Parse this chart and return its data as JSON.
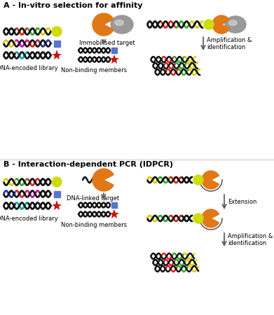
{
  "title_A": "A - In-vitro selection for affinity",
  "title_B": "B - Interaction-dependent PCR (IDPCR)",
  "label_dna_library": "DNA-encoded library",
  "label_immobilised": "Immobilised target",
  "label_nonbinding": "Non-binding members",
  "label_dna_linked": "DNA-linked target",
  "label_amplification": "Amplification &\nidentification",
  "label_extension": "Extension",
  "bg_color": "#ffffff",
  "text_color": "#000000",
  "orange_color": "#e07818",
  "yellow_color": "#ccdd00",
  "blue_square_color": "#5577cc",
  "red_star_color": "#cc1111",
  "gray_bead_color": "#999999",
  "arrow_color": "#555555",
  "dna_black": "#111111",
  "dna_red": "#dd2222",
  "dna_green": "#33aa33",
  "dna_yellow": "#ddcc00",
  "dna_magenta": "#cc00cc",
  "dna_blue": "#2233bb",
  "dna_cyan": "#00aaaa"
}
